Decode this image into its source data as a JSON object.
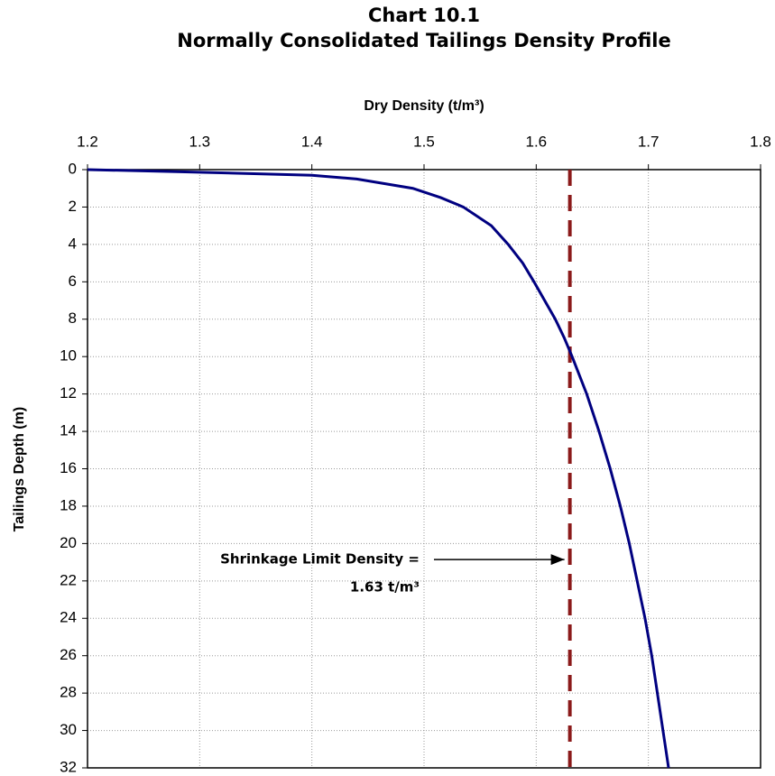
{
  "chart_data": {
    "type": "line",
    "title": "Chart 10.1",
    "subtitle": "Normally Consolidated Tailings Density Profile",
    "x_label": "Dry Density (t/m³)",
    "y_label": "Tailings Depth (m)",
    "xlim": [
      1.2,
      1.8
    ],
    "xticks": [
      1.2,
      1.3,
      1.4,
      1.5,
      1.6,
      1.7,
      1.8
    ],
    "ylim": [
      0,
      32
    ],
    "yticks": [
      0,
      2,
      4,
      6,
      8,
      10,
      12,
      14,
      16,
      18,
      20,
      22,
      24,
      26,
      28,
      30,
      32
    ],
    "y_inverted": true,
    "x_axis_position": "top",
    "grid": true,
    "x": [
      1.2,
      1.275,
      1.4,
      1.44,
      1.49,
      1.515,
      1.535,
      1.56,
      1.575,
      1.588,
      1.598,
      1.617,
      1.625,
      1.632,
      1.645,
      1.656,
      1.666,
      1.675,
      1.683,
      1.69,
      1.697,
      1.703,
      1.708,
      1.713,
      1.718
    ],
    "series": [
      {
        "color": "#000080",
        "values": [
          0,
          0.1,
          0.3,
          0.5,
          1,
          1.5,
          2,
          3,
          4,
          5,
          6,
          8,
          9,
          10,
          12,
          14,
          16,
          18,
          20,
          22,
          24,
          26,
          28,
          30,
          32
        ]
      }
    ],
    "reference_line": {
      "x": 1.63,
      "color": "#8b1a1a"
    },
    "annotation": {
      "lines": [
        "Shrinkage Limit Density =",
        "1.63 t/m³"
      ],
      "y": 21
    }
  }
}
